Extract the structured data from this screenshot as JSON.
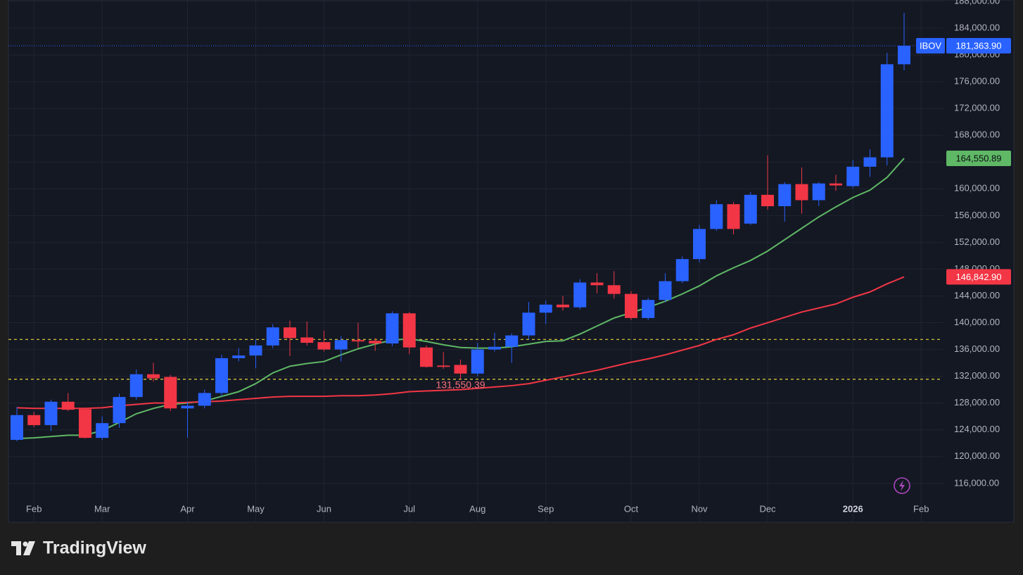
{
  "chart_data": {
    "type": "candlestick",
    "symbol": "IBOV",
    "categories": [
      null,
      "Feb",
      null,
      null,
      null,
      "Mar",
      null,
      null,
      null,
      null,
      "Apr",
      null,
      null,
      null,
      "May",
      null,
      null,
      null,
      "Jun",
      null,
      null,
      null,
      null,
      "Jul",
      null,
      null,
      null,
      "Aug",
      null,
      null,
      null,
      "Sep",
      null,
      null,
      null,
      null,
      "Oct",
      null,
      null,
      null,
      "Nov",
      null,
      null,
      null,
      "Dec",
      null,
      null,
      null,
      null,
      "2026",
      null,
      null,
      null,
      "Feb"
    ],
    "open": [
      122500,
      126200,
      124700,
      128200,
      127100,
      122800,
      125000,
      128900,
      132300,
      131900,
      127200,
      127600,
      129500,
      134700,
      135100,
      136600,
      139300,
      137800,
      137100,
      136000,
      137400,
      137300,
      136900,
      141400,
      136300,
      133600,
      133700,
      132400,
      136000,
      136400,
      138100,
      141500,
      142700,
      142300,
      146000,
      145600,
      144300,
      140700,
      143400,
      146200,
      149500,
      154000,
      157700,
      154800,
      159100,
      157400,
      160700,
      158300,
      160800,
      160400,
      163300,
      164700,
      178600,
      null
    ],
    "high": [
      127400,
      126700,
      128500,
      129500,
      127300,
      126000,
      129400,
      133000,
      134000,
      132200,
      128200,
      130000,
      135200,
      136200,
      137500,
      139800,
      140300,
      140200,
      138800,
      138000,
      140000,
      137700,
      141700,
      141600,
      136600,
      135600,
      134500,
      137000,
      138500,
      138400,
      143100,
      143300,
      144000,
      146500,
      147400,
      147700,
      144700,
      143700,
      147400,
      149900,
      154600,
      158300,
      158000,
      159500,
      165000,
      161000,
      163200,
      161000,
      162100,
      164300,
      165900,
      180300,
      186300,
      null
    ],
    "low": [
      122300,
      124400,
      123800,
      126800,
      122700,
      122500,
      124300,
      128500,
      131200,
      126800,
      122800,
      127200,
      129000,
      134200,
      133200,
      136200,
      135000,
      136600,
      135700,
      134200,
      136200,
      135800,
      136500,
      135300,
      133300,
      133100,
      {
        "value": 131550.39,
        "label": "131,550.39"
      },
      132000,
      135700,
      134000,
      137500,
      139800,
      141800,
      142000,
      144400,
      143600,
      140400,
      140400,
      143100,
      145900,
      149000,
      153700,
      153200,
      154600,
      156900,
      155100,
      156300,
      157400,
      159700,
      160100,
      161800,
      163500,
      177700,
      null
    ],
    "close": [
      126200,
      124700,
      128200,
      127000,
      122800,
      125000,
      128900,
      132300,
      131700,
      127200,
      127600,
      129500,
      134700,
      135100,
      136600,
      139300,
      137700,
      137000,
      136000,
      137400,
      137200,
      136900,
      141400,
      136300,
      133400,
      133400,
      132400,
      136000,
      136400,
      138100,
      141500,
      142700,
      142300,
      146000,
      145600,
      144300,
      140700,
      143400,
      146200,
      149500,
      154000,
      157700,
      154000,
      159100,
      157400,
      160700,
      158300,
      160800,
      160500,
      163300,
      164700,
      178600,
      {
        "value": 181363.9,
        "label": "181,363.90"
      },
      null
    ],
    "up_color": "#2962ff",
    "down_color": "#f23645",
    "lines": [
      {
        "color": "#5fb865",
        "values": [
          122700,
          122800,
          123000,
          123200,
          123200,
          123900,
          125100,
          126400,
          127200,
          127800,
          128000,
          128300,
          129000,
          129700,
          130900,
          132500,
          133500,
          133900,
          134200,
          135200,
          136100,
          136800,
          137400,
          137600,
          137200,
          136700,
          136300,
          136200,
          136200,
          136400,
          136800,
          137200,
          137300,
          138300,
          139500,
          140700,
          141500,
          142300,
          143200,
          144300,
          145500,
          147000,
          148200,
          149300,
          150700,
          152400,
          154100,
          155800,
          157300,
          158700,
          159800,
          161700,
          {
            "value": 164550.89,
            "label": "164,550.89"
          },
          null
        ]
      },
      {
        "color": "#f23645",
        "values": [
          127300,
          127200,
          127200,
          127200,
          127200,
          127300,
          127600,
          127800,
          128000,
          128000,
          128100,
          128200,
          128300,
          128500,
          128700,
          128900,
          129000,
          129000,
          129000,
          129100,
          129100,
          129200,
          129400,
          129700,
          129800,
          129900,
          130000,
          130200,
          130400,
          130600,
          130900,
          131400,
          131900,
          132400,
          132900,
          133500,
          134100,
          134600,
          135200,
          135900,
          136600,
          137500,
          138200,
          139200,
          140000,
          140800,
          141600,
          142200,
          142800,
          143800,
          144600,
          145800,
          {
            "value": 146842.9,
            "label": "146,842.90"
          },
          null
        ]
      }
    ],
    "hlines": [
      {
        "value": 137500,
        "color": "#e8d43c"
      },
      {
        "value": 131550.39,
        "color": "#e8d43c"
      }
    ],
    "ylim": [
      110200,
      188200
    ],
    "yticks": [
      {
        "value": 116000,
        "label": "116,000.00"
      },
      {
        "value": 120000,
        "label": "120,000.00"
      },
      {
        "value": 124000,
        "label": "124,000.00"
      },
      {
        "value": 128000,
        "label": "128,000.00"
      },
      {
        "value": 132000,
        "label": "132,000.00"
      },
      {
        "value": 136000,
        "label": "136,000.00"
      },
      {
        "value": 140000,
        "label": "140,000.00"
      },
      {
        "value": 144000,
        "label": "144,000.00"
      },
      {
        "value": 148000,
        "label": "148,000.00"
      },
      {
        "value": 152000,
        "label": "152,000.00"
      },
      {
        "value": 156000,
        "label": "156,000.00"
      },
      {
        "value": 160000,
        "label": "160,000.00"
      },
      {
        "value": 164000,
        "label": "164,000.00"
      },
      {
        "value": 168000,
        "label": "168,000.00"
      },
      {
        "value": 172000,
        "label": "172,000.00"
      },
      {
        "value": 176000,
        "label": "176,000.00"
      },
      {
        "value": 180000,
        "label": "180,000.00"
      },
      {
        "value": 184000,
        "label": "184,000.00"
      },
      {
        "value": 188000,
        "label": "188,000.00"
      }
    ],
    "grid": true
  },
  "branding": "TradingView"
}
